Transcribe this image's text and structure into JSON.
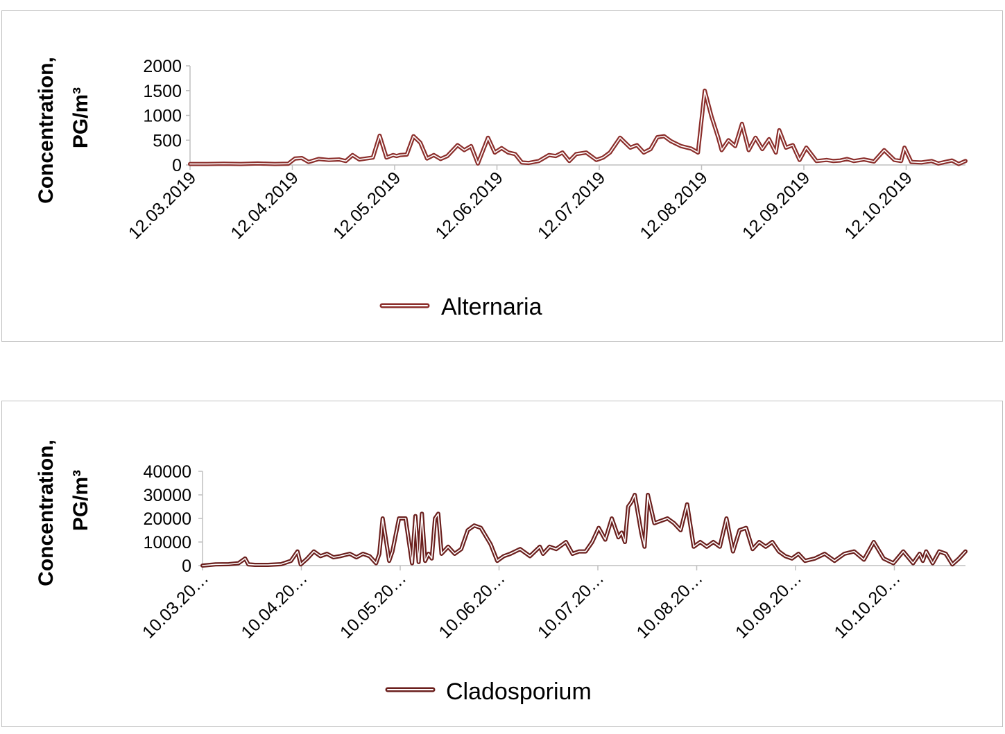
{
  "chart_data": [
    {
      "type": "line",
      "y_axis_label": {
        "line1": "Concentration,",
        "line2": "PG/m³"
      },
      "y_ticks": [
        "2000",
        "1500",
        "1000",
        "500",
        "0"
      ],
      "y_tick_values": [
        2000,
        1500,
        1000,
        500,
        0
      ],
      "ylim": [
        0,
        2000
      ],
      "x_ticks": [
        "12.03.2019",
        "12.04.2019",
        "12.05.2019",
        "12.06.2019",
        "12.07.2019",
        "12.08.2019",
        "12.09.2019",
        "12.10.2019"
      ],
      "xlim": [
        0,
        229
      ],
      "series": [
        {
          "name": "Alternaria",
          "color": "#8b2e2b",
          "x": [
            0,
            5,
            10,
            15,
            20,
            25,
            29,
            31,
            33,
            35,
            38,
            41,
            44,
            46,
            48,
            50,
            52,
            54,
            56,
            58,
            60,
            61,
            62,
            64,
            66,
            68,
            70,
            72,
            74,
            76,
            79,
            81,
            83,
            85,
            88,
            90,
            92,
            94,
            96,
            98,
            100,
            103,
            106,
            108,
            110,
            112,
            114,
            117,
            120,
            122,
            124,
            127,
            130,
            132,
            134,
            136,
            138,
            140,
            142,
            145,
            148,
            150,
            152,
            154,
            156,
            157,
            159,
            161,
            163,
            165,
            167,
            169,
            171,
            173,
            174,
            176,
            178,
            180,
            182,
            185,
            188,
            190,
            192,
            194,
            196,
            199,
            202,
            205,
            208,
            210,
            211,
            213,
            216,
            219,
            221,
            223,
            225,
            227,
            229
          ],
          "values": [
            20,
            20,
            25,
            20,
            30,
            20,
            25,
            130,
            140,
            60,
            120,
            100,
            110,
            80,
            200,
            110,
            130,
            150,
            590,
            150,
            200,
            180,
            200,
            210,
            580,
            450,
            130,
            200,
            120,
            180,
            400,
            300,
            380,
            30,
            550,
            250,
            340,
            250,
            220,
            50,
            40,
            80,
            200,
            180,
            250,
            80,
            220,
            250,
            100,
            150,
            250,
            550,
            350,
            400,
            250,
            320,
            560,
            580,
            480,
            380,
            330,
            250,
            1500,
            980,
            550,
            300,
            500,
            380,
            830,
            300,
            550,
            320,
            520,
            250,
            700,
            350,
            400,
            100,
            350,
            80,
            100,
            80,
            90,
            120,
            80,
            110,
            70,
            300,
            100,
            80,
            350,
            60,
            50,
            80,
            30,
            60,
            90,
            20,
            80
          ]
        }
      ],
      "legend": "bottom-center"
    },
    {
      "type": "line",
      "y_axis_label": {
        "line1": "Concentration,",
        "line2": "PG/m³"
      },
      "y_ticks": [
        "40000",
        "30000",
        "20000",
        "10000",
        "0"
      ],
      "y_tick_values": [
        40000,
        30000,
        20000,
        10000,
        0
      ],
      "ylim": [
        0,
        40000
      ],
      "x_ticks": [
        "10.03.20…",
        "10.04.20…",
        "10.05.20…",
        "10.06.20…",
        "10.07.20…",
        "10.08.20…",
        "10.09.20…",
        "10.10.20…"
      ],
      "xlim": [
        0,
        233
      ],
      "series": [
        {
          "name": "Cladosporium",
          "color": "#6b1f1d",
          "x": [
            0,
            4,
            8,
            11,
            13,
            14,
            16,
            20,
            24,
            27,
            29,
            30,
            32,
            34,
            36,
            38,
            40,
            42,
            45,
            47,
            49,
            51,
            53,
            54,
            55,
            57,
            58,
            60,
            62,
            64,
            65,
            66,
            67,
            68,
            69,
            70,
            71,
            72,
            73,
            75,
            77,
            79,
            81,
            83,
            85,
            88,
            90,
            92,
            94,
            97,
            100,
            103,
            104,
            106,
            108,
            111,
            113,
            115,
            117,
            119,
            121,
            123,
            125,
            127,
            128,
            129,
            130,
            131,
            132,
            133,
            134,
            135,
            136,
            138,
            140,
            142,
            144,
            146,
            148,
            150,
            152,
            154,
            156,
            158,
            160,
            162,
            164,
            166,
            168,
            170,
            172,
            174,
            176,
            178,
            180,
            182,
            184,
            187,
            190,
            193,
            196,
            199,
            202,
            205,
            208,
            211,
            214,
            217,
            219,
            220,
            221,
            223,
            225,
            227,
            229,
            231,
            233
          ],
          "values": [
            0,
            500,
            600,
            1000,
            3000,
            500,
            300,
            300,
            600,
            2000,
            6000,
            500,
            3000,
            6000,
            4000,
            5000,
            3500,
            4000,
            5000,
            3500,
            5000,
            4000,
            1000,
            5000,
            20000,
            2000,
            6000,
            20000,
            20000,
            1000,
            21000,
            1500,
            22000,
            2000,
            5000,
            3000,
            20000,
            22000,
            5000,
            8000,
            5000,
            7000,
            15000,
            17000,
            16000,
            9000,
            2000,
            4000,
            5000,
            7000,
            4000,
            8000,
            5000,
            8000,
            7000,
            10000,
            5000,
            6000,
            6000,
            10000,
            16000,
            11000,
            20000,
            12000,
            14000,
            10000,
            25000,
            27000,
            30000,
            22000,
            14000,
            8000,
            30000,
            18000,
            19000,
            20000,
            18000,
            15000,
            26000,
            8000,
            10000,
            8000,
            10000,
            8000,
            20000,
            6000,
            15000,
            16000,
            7000,
            10000,
            8000,
            10000,
            6000,
            4000,
            3000,
            5000,
            2000,
            3000,
            5000,
            2000,
            5000,
            6000,
            2500,
            10000,
            3000,
            1000,
            6000,
            1000,
            5000,
            2000,
            6000,
            1000,
            6000,
            5000,
            500,
            3000,
            6000
          ]
        }
      ],
      "legend": "bottom-center"
    }
  ]
}
